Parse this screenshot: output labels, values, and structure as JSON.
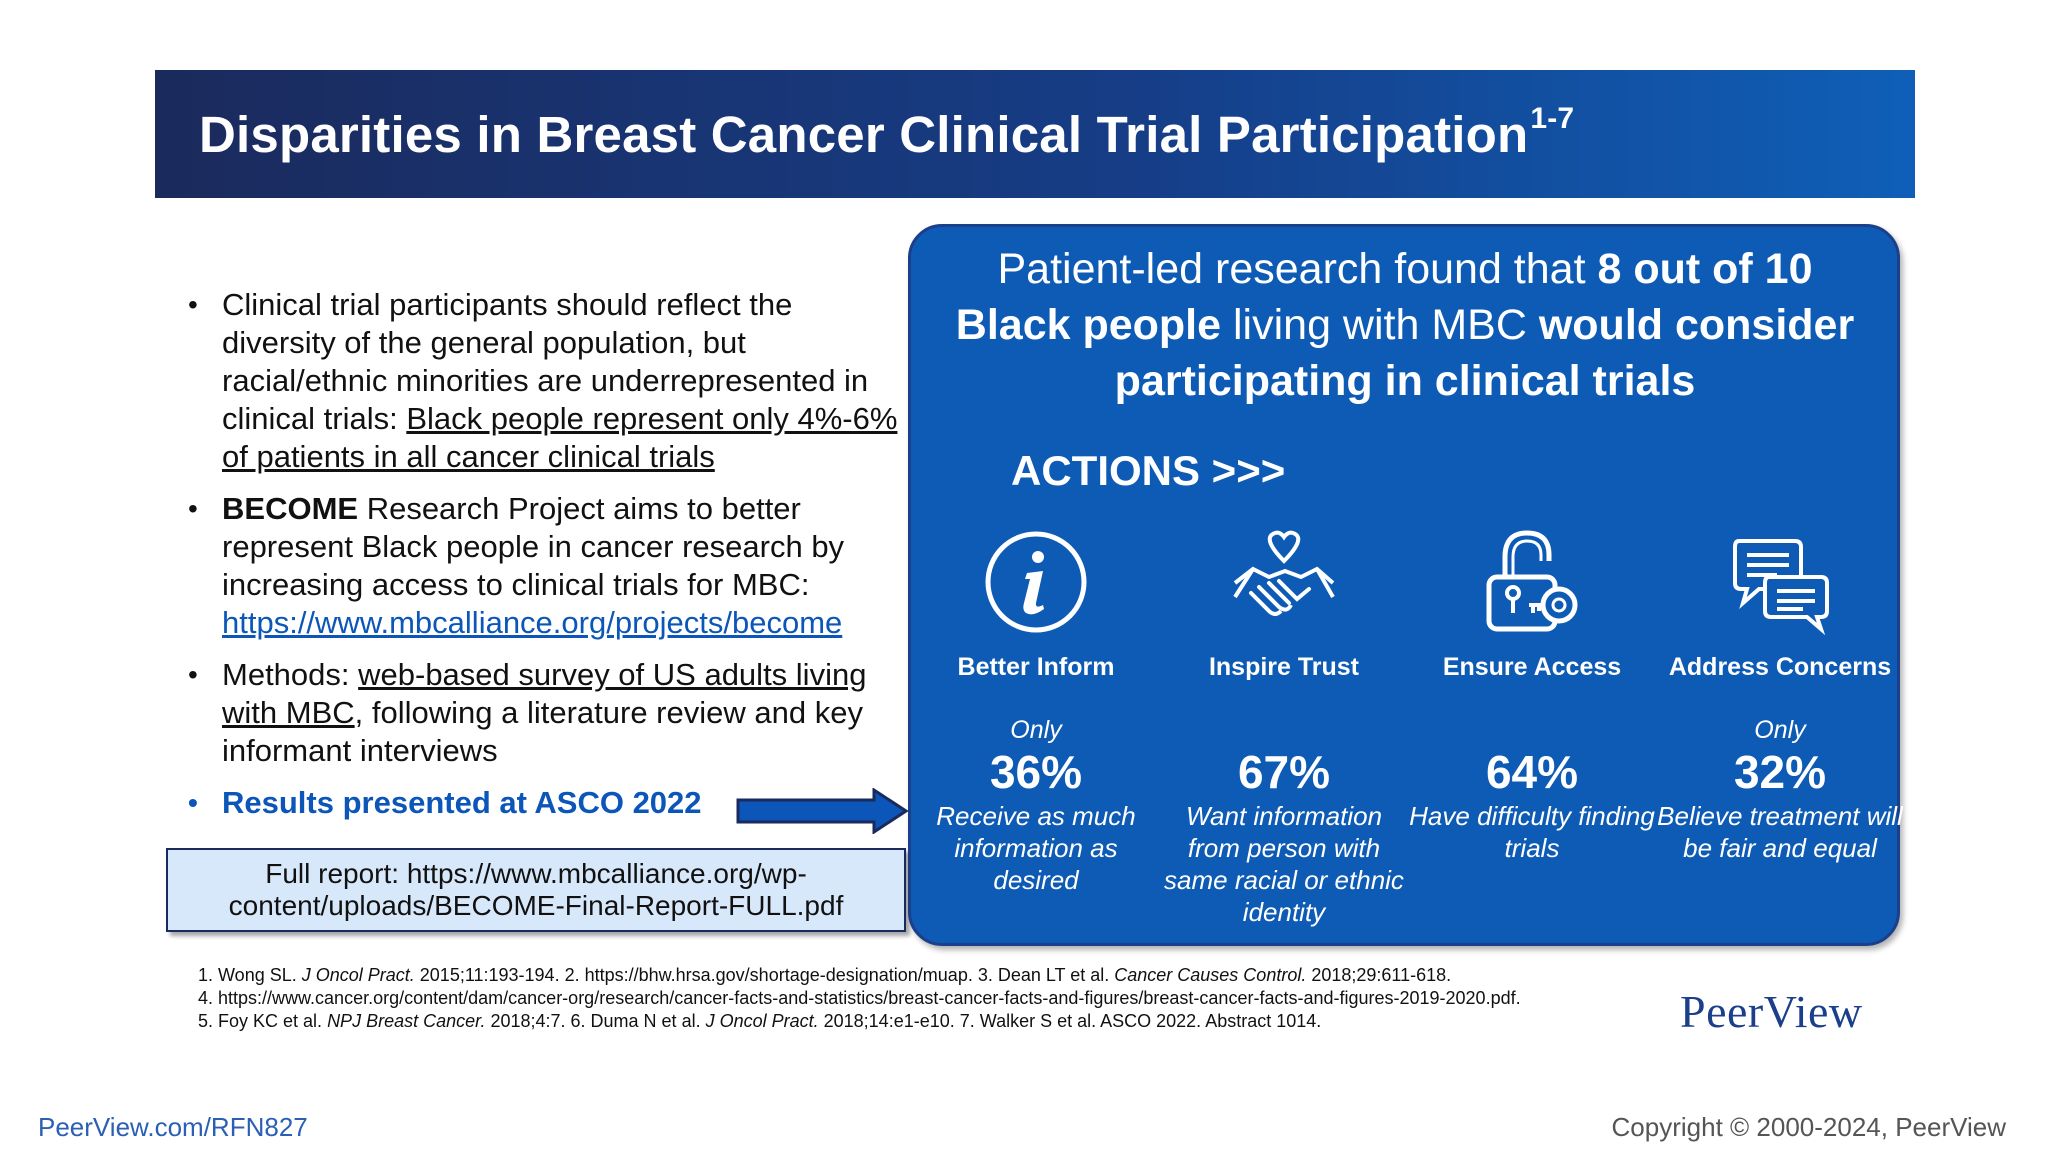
{
  "slide": {
    "title": "Disparities in Breast Cancer Clinical Trial Participation",
    "title_superscript": "1-7"
  },
  "bullets": {
    "b1_text": "Clinical trial participants should reflect the diversity of the general population, but racial/ethnic minorities are underrepresented in clinical trials: ",
    "b1_underlined": "Black people represent only 4%-6% of patients in all cancer clinical trials",
    "b2_bold": "BECOME",
    "b2_text": " Research Project aims to better represent Black people in cancer research by increasing access to clinical trials for MBC: ",
    "b2_link": "https://www.mbcalliance.org/projects/become",
    "b3_prefix": "Methods: ",
    "b3_underlined": "web-based survey of US adults living with MBC",
    "b3_suffix": ", following a literature review and key informant interviews",
    "b4_results": "Results presented at ASCO 2022"
  },
  "report_box": {
    "text": "Full report: https://www.mbcalliance.org/wp-content/uploads/BECOME-Final-Report-FULL.pdf"
  },
  "panel": {
    "headline_1": "Patient-led research found that ",
    "headline_2": "8 out of 10",
    "headline_3": "Black people",
    "headline_4": " living with MBC ",
    "headline_5": "would consider participating in clinical trials",
    "actions_label": "ACTIONS >>>",
    "actions": [
      {
        "icon": "info-icon",
        "label": "Better Inform",
        "qualifier": "Only",
        "percent": "36%",
        "desc": "Receive as much information as desired"
      },
      {
        "icon": "handshake-heart-icon",
        "label": "Inspire Trust",
        "qualifier": "",
        "percent": "67%",
        "desc": "Want information from person with same racial or ethnic identity"
      },
      {
        "icon": "unlock-icon",
        "label": "Ensure Access",
        "qualifier": "",
        "percent": "64%",
        "desc": "Have difficulty finding trials"
      },
      {
        "icon": "chat-bubbles-icon",
        "label": "Address Concerns",
        "qualifier": "Only",
        "percent": "32%",
        "desc": "Believe treatment will be fair and equal"
      }
    ]
  },
  "references": {
    "r1a": "1. Wong SL. ",
    "r1b": "J Oncol Pract.",
    "r1c": " 2015;11:193-194. 2. https://bhw.hrsa.gov/shortage-designation/muap. 3. Dean LT et al. ",
    "r1d": "Cancer Causes Control.",
    "r1e": " 2018;29:611-618.",
    "r2": "4. https://www.cancer.org/content/dam/cancer-org/research/cancer-facts-and-statistics/breast-cancer-facts-and-figures/breast-cancer-facts-and-figures-2019-2020.pdf.",
    "r3a": "5. Foy KC et al. ",
    "r3b": "NPJ Breast Cancer.",
    "r3c": " 2018;4:7. 6. Duma N et al. ",
    "r3d": "J Oncol Pract.",
    "r3e": " 2018;14:e1-e10. 7. Walker S et al. ASCO 2022. Abstract 1014."
  },
  "logo": "PeerView",
  "footer": {
    "link": "PeerView.com/RFN827",
    "copyright": "Copyright © 2000-2024, PeerView"
  },
  "colors": {
    "title_bar_dark": "#1b2a5c",
    "panel_blue": "#0d5bb5",
    "accent_blue": "#0b56b8",
    "report_box_fill": "#d8e8fb"
  }
}
